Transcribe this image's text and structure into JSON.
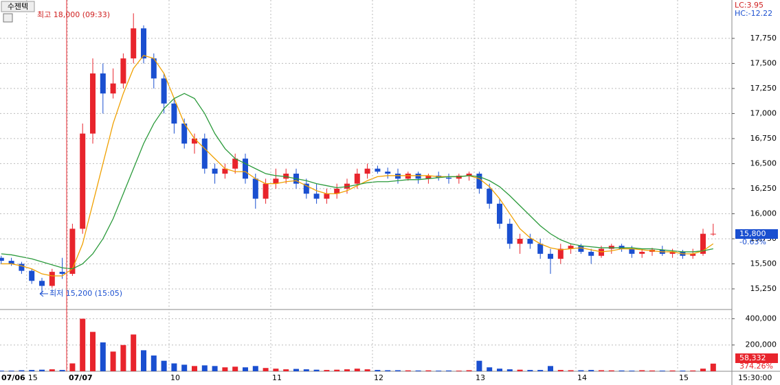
{
  "ui": {
    "stock_name": "수젠텍",
    "lc": "LC:3.95",
    "hc": "HC:-12.22",
    "price_badge": "15,800",
    "change_badge": "-0.63%",
    "volume_badge": "58,332",
    "ratio_badge": "374.26%",
    "time_label": "15:30:00",
    "high_note": "최고 18,000 (09:33)",
    "low_note": "최저 15,200 (15:05)"
  },
  "chart_data": [
    {
      "type": "candlestick",
      "up_color": "#e8242c",
      "down_color": "#1a4fd0",
      "grid": true,
      "categories": [
        "07/06",
        null,
        null,
        "15",
        null,
        null,
        null,
        "07/07",
        null,
        null,
        null,
        null,
        null,
        null,
        null,
        null,
        null,
        "10",
        null,
        null,
        null,
        null,
        null,
        null,
        null,
        null,
        null,
        "11",
        null,
        null,
        null,
        null,
        null,
        null,
        null,
        null,
        null,
        "12",
        null,
        null,
        null,
        null,
        null,
        null,
        null,
        null,
        null,
        "13",
        null,
        null,
        null,
        null,
        null,
        null,
        null,
        null,
        null,
        "14",
        null,
        null,
        null,
        null,
        null,
        null,
        null,
        null,
        null,
        "15",
        null,
        null,
        null
      ],
      "open": [
        15560,
        15530,
        15500,
        15430,
        15330,
        15280,
        15420,
        15400,
        15850,
        16800,
        17400,
        17200,
        17300,
        17550,
        17850,
        17550,
        17350,
        17100,
        16900,
        16700,
        16750,
        16450,
        16400,
        16450,
        16550,
        16350,
        16150,
        16300,
        16350,
        16400,
        16300,
        16200,
        16150,
        16200,
        16250,
        16300,
        16400,
        16450,
        16420,
        16400,
        16350,
        16400,
        16350,
        16380,
        16360,
        16350,
        16380,
        16400,
        16250,
        16100,
        15900,
        15700,
        15750,
        15700,
        15600,
        15550,
        15650,
        15680,
        15620,
        15580,
        15650,
        15680,
        15650,
        15600,
        15620,
        15640,
        15600,
        15620,
        15580,
        15600,
        15800
      ],
      "high": [
        15580,
        15560,
        15520,
        15450,
        15360,
        15450,
        15560,
        15900,
        16900,
        17550,
        17500,
        17450,
        17600,
        18000,
        17880,
        17600,
        17400,
        17150,
        16950,
        16800,
        16800,
        16500,
        16500,
        16600,
        16600,
        16400,
        16350,
        16450,
        16450,
        16450,
        16350,
        16300,
        16250,
        16300,
        16350,
        16450,
        16500,
        16480,
        16460,
        16450,
        16420,
        16420,
        16400,
        16420,
        16400,
        16400,
        16420,
        16420,
        16300,
        16150,
        15950,
        15800,
        15800,
        15750,
        15650,
        15700,
        15700,
        15700,
        15650,
        15680,
        15700,
        15700,
        15680,
        15650,
        15660,
        15680,
        15650,
        15640,
        15650,
        15850,
        15900
      ],
      "low": [
        15500,
        15480,
        15400,
        15300,
        15200,
        15260,
        15350,
        15380,
        15800,
        16700,
        17000,
        17150,
        17250,
        17500,
        17500,
        17250,
        17000,
        16800,
        16650,
        16600,
        16400,
        16300,
        16350,
        16400,
        16300,
        16050,
        16100,
        16250,
        16300,
        16250,
        16150,
        16100,
        16100,
        16150,
        16200,
        16250,
        16350,
        16400,
        16350,
        16300,
        16330,
        16300,
        16300,
        16330,
        16300,
        16300,
        16330,
        16200,
        16050,
        15850,
        15650,
        15600,
        15650,
        15550,
        15400,
        15500,
        15600,
        15600,
        15500,
        15560,
        15600,
        15620,
        15560,
        15560,
        15580,
        15580,
        15560,
        15550,
        15550,
        15580,
        15780
      ],
      "close": [
        15530,
        15500,
        15430,
        15330,
        15280,
        15420,
        15400,
        15850,
        16800,
        17400,
        17200,
        17300,
        17550,
        17850,
        17550,
        17350,
        17100,
        16900,
        16700,
        16750,
        16450,
        16400,
        16450,
        16550,
        16350,
        16150,
        16300,
        16350,
        16400,
        16300,
        16200,
        16150,
        16200,
        16250,
        16300,
        16400,
        16450,
        16420,
        16400,
        16350,
        16400,
        16350,
        16380,
        16360,
        16350,
        16380,
        16400,
        16250,
        16100,
        15900,
        15700,
        15750,
        15700,
        15600,
        15550,
        15650,
        15680,
        15620,
        15580,
        15650,
        15680,
        15650,
        15600,
        15620,
        15640,
        15600,
        15620,
        15580,
        15600,
        15800,
        15800
      ],
      "ma_lines": [
        {
          "color": "#f0a000",
          "values": [
            15500,
            15500,
            15480,
            15450,
            15400,
            15380,
            15380,
            15450,
            15700,
            16100,
            16500,
            16900,
            17200,
            17450,
            17580,
            17550,
            17400,
            17150,
            16900,
            16750,
            16650,
            16550,
            16450,
            16420,
            16420,
            16350,
            16300,
            16300,
            16320,
            16330,
            16280,
            16230,
            16200,
            16200,
            16230,
            16280,
            16330,
            16370,
            16380,
            16380,
            16380,
            16380,
            16380,
            16370,
            16370,
            16370,
            16380,
            16350,
            16270,
            16150,
            16000,
            15850,
            15760,
            15700,
            15660,
            15640,
            15650,
            15660,
            15640,
            15620,
            15630,
            15650,
            15650,
            15640,
            15630,
            15620,
            15620,
            15600,
            15600,
            15630,
            15700
          ]
        },
        {
          "color": "#2a9a3a",
          "values": [
            15600,
            15590,
            15570,
            15550,
            15520,
            15490,
            15460,
            15450,
            15500,
            15600,
            15750,
            15950,
            16200,
            16450,
            16700,
            16900,
            17050,
            17150,
            17200,
            17150,
            17000,
            16800,
            16650,
            16550,
            16500,
            16450,
            16400,
            16380,
            16370,
            16350,
            16330,
            16300,
            16280,
            16260,
            16270,
            16290,
            16310,
            16320,
            16320,
            16330,
            16340,
            16340,
            16350,
            16360,
            16370,
            16370,
            16380,
            16370,
            16330,
            16270,
            16180,
            16080,
            15980,
            15880,
            15800,
            15740,
            15700,
            15680,
            15670,
            15660,
            15660,
            15660,
            15660,
            15650,
            15650,
            15640,
            15630,
            15620,
            15620,
            15630,
            15650
          ]
        }
      ],
      "ylim": [
        15051,
        18133
      ],
      "yticks": [
        {
          "value": 15250,
          "label": "15,250"
        },
        {
          "value": 15500,
          "label": "15,500"
        },
        {
          "value": 15750,
          "label": "15,750"
        },
        {
          "value": 16000,
          "label": "16,000"
        },
        {
          "value": 16250,
          "label": "16,250"
        },
        {
          "value": 16500,
          "label": "16,500"
        },
        {
          "value": 16750,
          "label": "16,750"
        },
        {
          "value": 17000,
          "label": "17,000"
        },
        {
          "value": 17250,
          "label": "17,250"
        },
        {
          "value": 17500,
          "label": "17,500"
        },
        {
          "value": 17750,
          "label": "17,750"
        }
      ]
    },
    {
      "type": "bar",
      "values": [
        5000,
        5000,
        8000,
        10000,
        12000,
        15000,
        10000,
        60000,
        400000,
        300000,
        220000,
        150000,
        200000,
        280000,
        160000,
        120000,
        80000,
        60000,
        50000,
        40000,
        45000,
        40000,
        30000,
        35000,
        30000,
        40000,
        25000,
        20000,
        15000,
        18000,
        15000,
        12000,
        10000,
        12000,
        15000,
        20000,
        15000,
        10000,
        8000,
        8000,
        7000,
        6000,
        7000,
        5000,
        6000,
        5000,
        8000,
        80000,
        30000,
        20000,
        15000,
        12000,
        10000,
        10000,
        40000,
        10000,
        8000,
        8000,
        10000,
        8000,
        7000,
        6000,
        5000,
        8000,
        6000,
        5000,
        6000,
        5000,
        6000,
        20000,
        58332
      ],
      "ylim": [
        0,
        465000
      ],
      "yticks": [
        {
          "value": 200000,
          "label": "200,000"
        },
        {
          "value": 400000,
          "label": "400,000"
        }
      ]
    }
  ]
}
